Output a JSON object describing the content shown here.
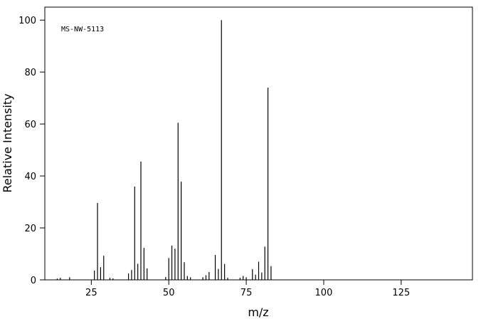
{
  "chart_data": {
    "type": "stem",
    "annotation": "MS-NW-5113",
    "xlabel": "m/z",
    "ylabel": "Relative Intensity",
    "color": "#000000",
    "x": [
      14,
      15,
      18,
      26,
      27,
      28,
      29,
      31,
      32,
      37,
      38,
      39,
      40,
      41,
      42,
      43,
      49,
      50,
      51,
      52,
      53,
      54,
      55,
      56,
      57,
      61,
      62,
      63,
      65,
      66,
      67,
      68,
      69,
      73,
      74,
      75,
      77,
      78,
      79,
      80,
      81,
      82,
      83
    ],
    "values": [
      0.5,
      0.8,
      1,
      3.6,
      29.6,
      4.9,
      9.3,
      0.8,
      0.6,
      2.5,
      3.8,
      35.9,
      6.2,
      45.5,
      12.3,
      4.4,
      1.1,
      8.4,
      13.2,
      12,
      60.5,
      37.8,
      6.8,
      1.5,
      1,
      1,
      1.8,
      3,
      9.6,
      4.2,
      100,
      6.1,
      0.8,
      0.8,
      1.5,
      1,
      4.1,
      2,
      7,
      2.8,
      12.8,
      74,
      5.3
    ],
    "xlim": [
      10,
      148
    ],
    "ylim": [
      0,
      105
    ],
    "xticks": [
      25,
      50,
      75,
      100,
      125
    ],
    "yticks": [
      0,
      20,
      40,
      60,
      80,
      100
    ]
  }
}
